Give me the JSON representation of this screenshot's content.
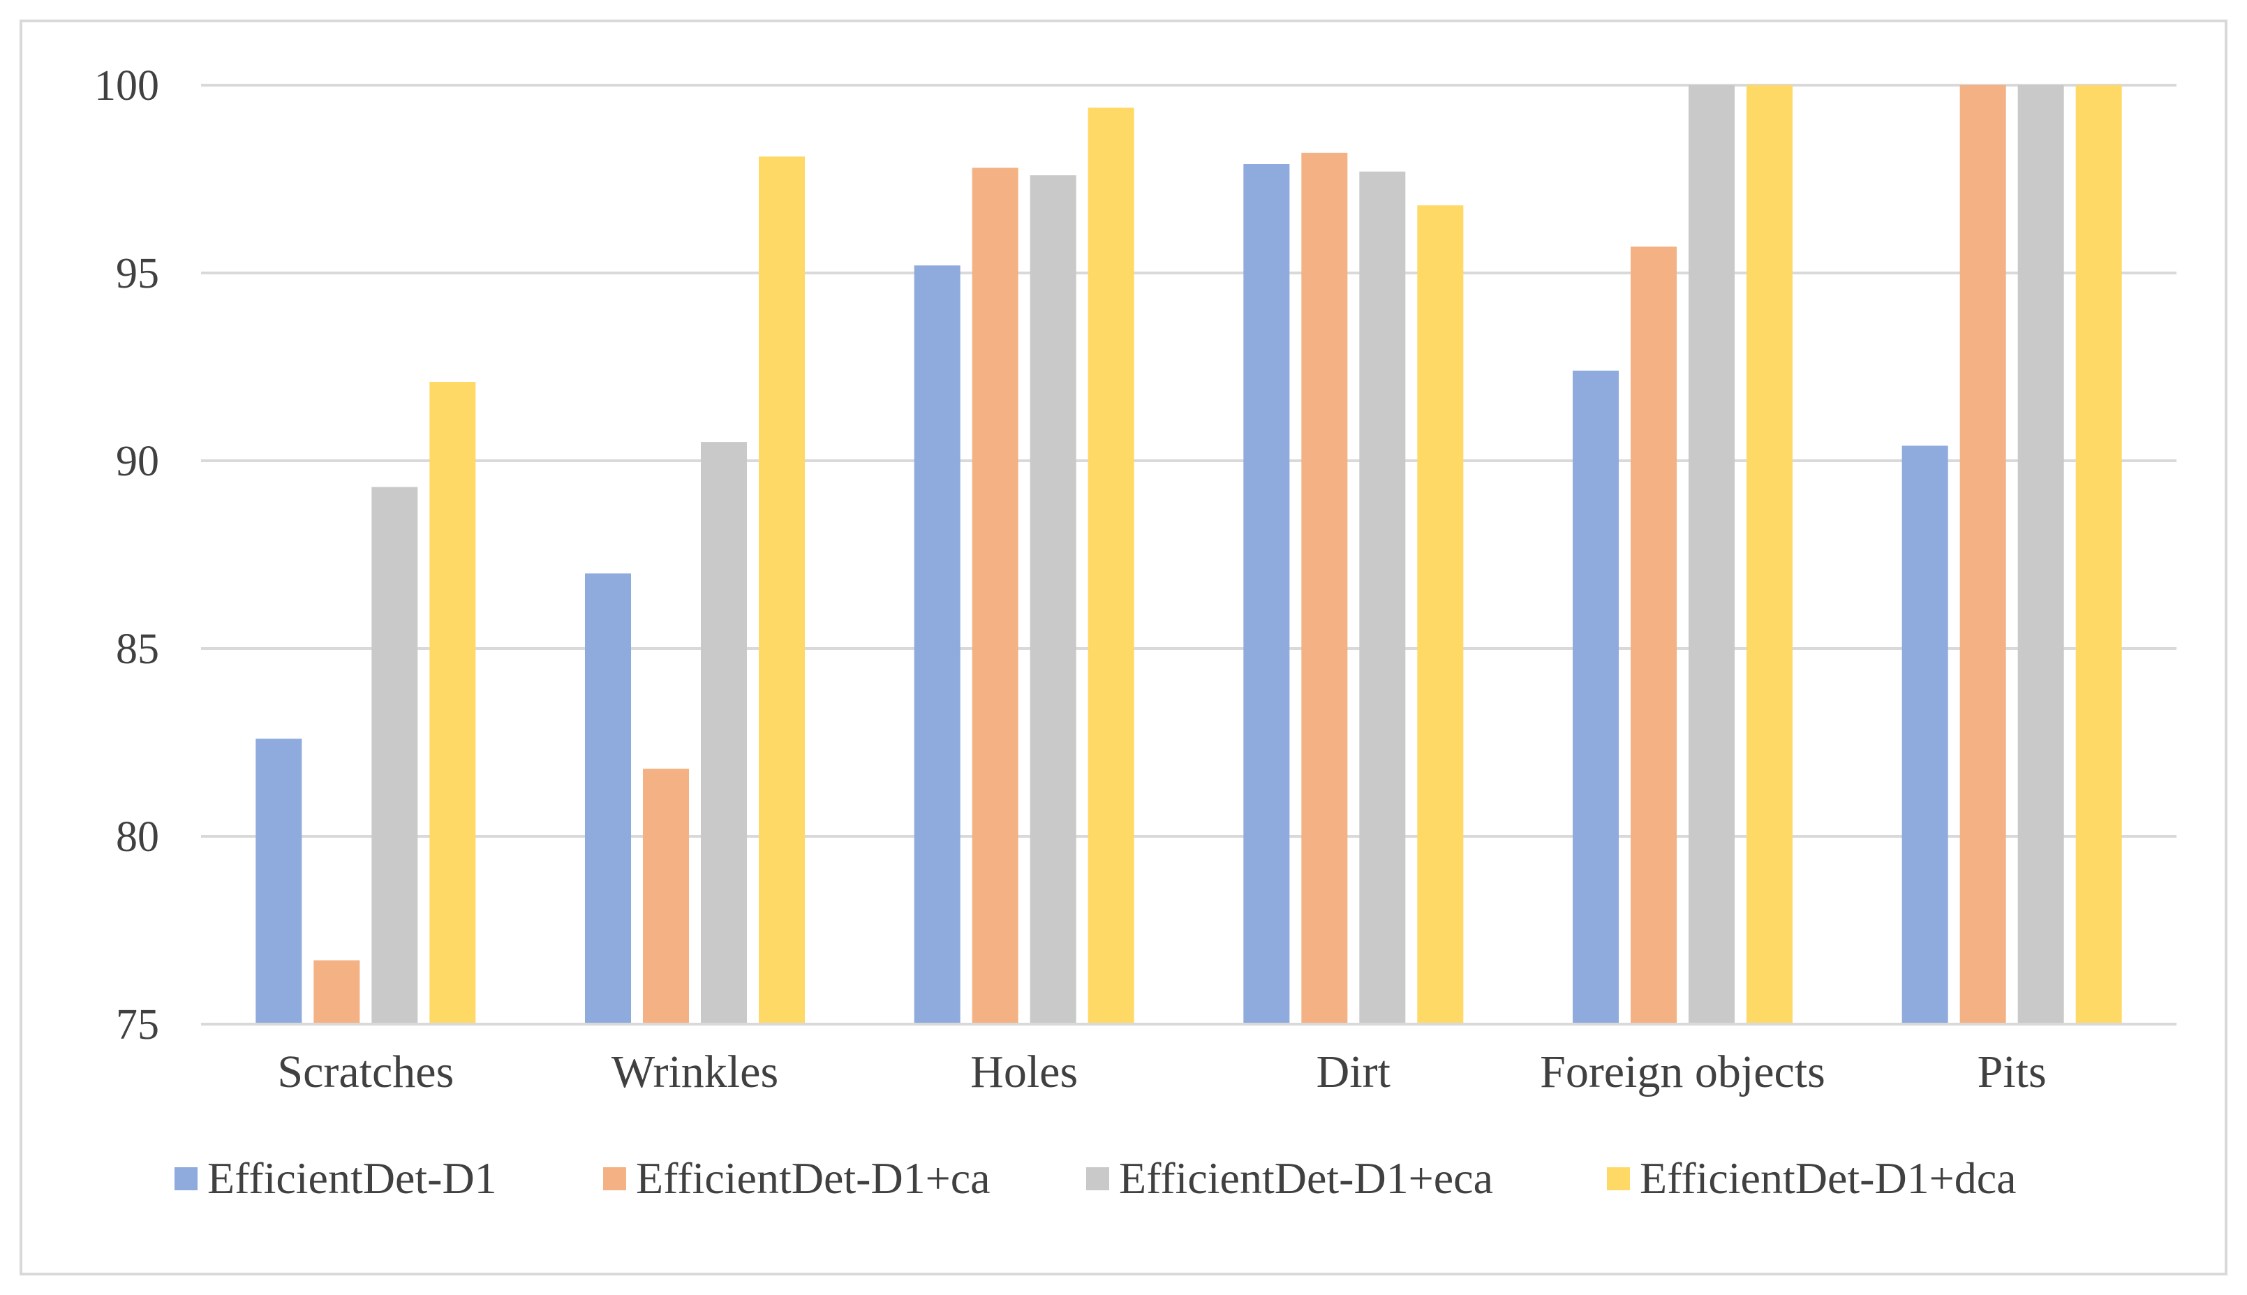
{
  "chart_data": {
    "type": "bar",
    "title": "",
    "xlabel": "",
    "ylabel": "",
    "ylim": [
      75,
      100
    ],
    "y_ticks": [
      "75",
      "80",
      "85",
      "90",
      "95",
      "100"
    ],
    "grid": true,
    "legend_position": "bottom",
    "categories": [
      "Scratches",
      "Wrinkles",
      "Holes",
      "Dirt",
      "Foreign objects",
      "Pits"
    ],
    "series": [
      {
        "name": "EfficientDet-D1",
        "color": "#8faadc",
        "values": [
          82.6,
          87.0,
          95.2,
          97.9,
          92.4,
          90.4
        ]
      },
      {
        "name": "EfficientDet-D1+ca",
        "color": "#f4b183",
        "values": [
          76.7,
          81.8,
          97.8,
          98.2,
          95.7,
          100
        ]
      },
      {
        "name": "EfficientDet-D1+eca",
        "color": "#c9c9c9",
        "values": [
          89.3,
          90.5,
          97.6,
          97.7,
          100,
          100
        ]
      },
      {
        "name": "EfficientDet-D1+dca",
        "color": "#ffd966",
        "values": [
          92.1,
          98.1,
          99.4,
          96.8,
          100,
          100
        ]
      }
    ]
  }
}
